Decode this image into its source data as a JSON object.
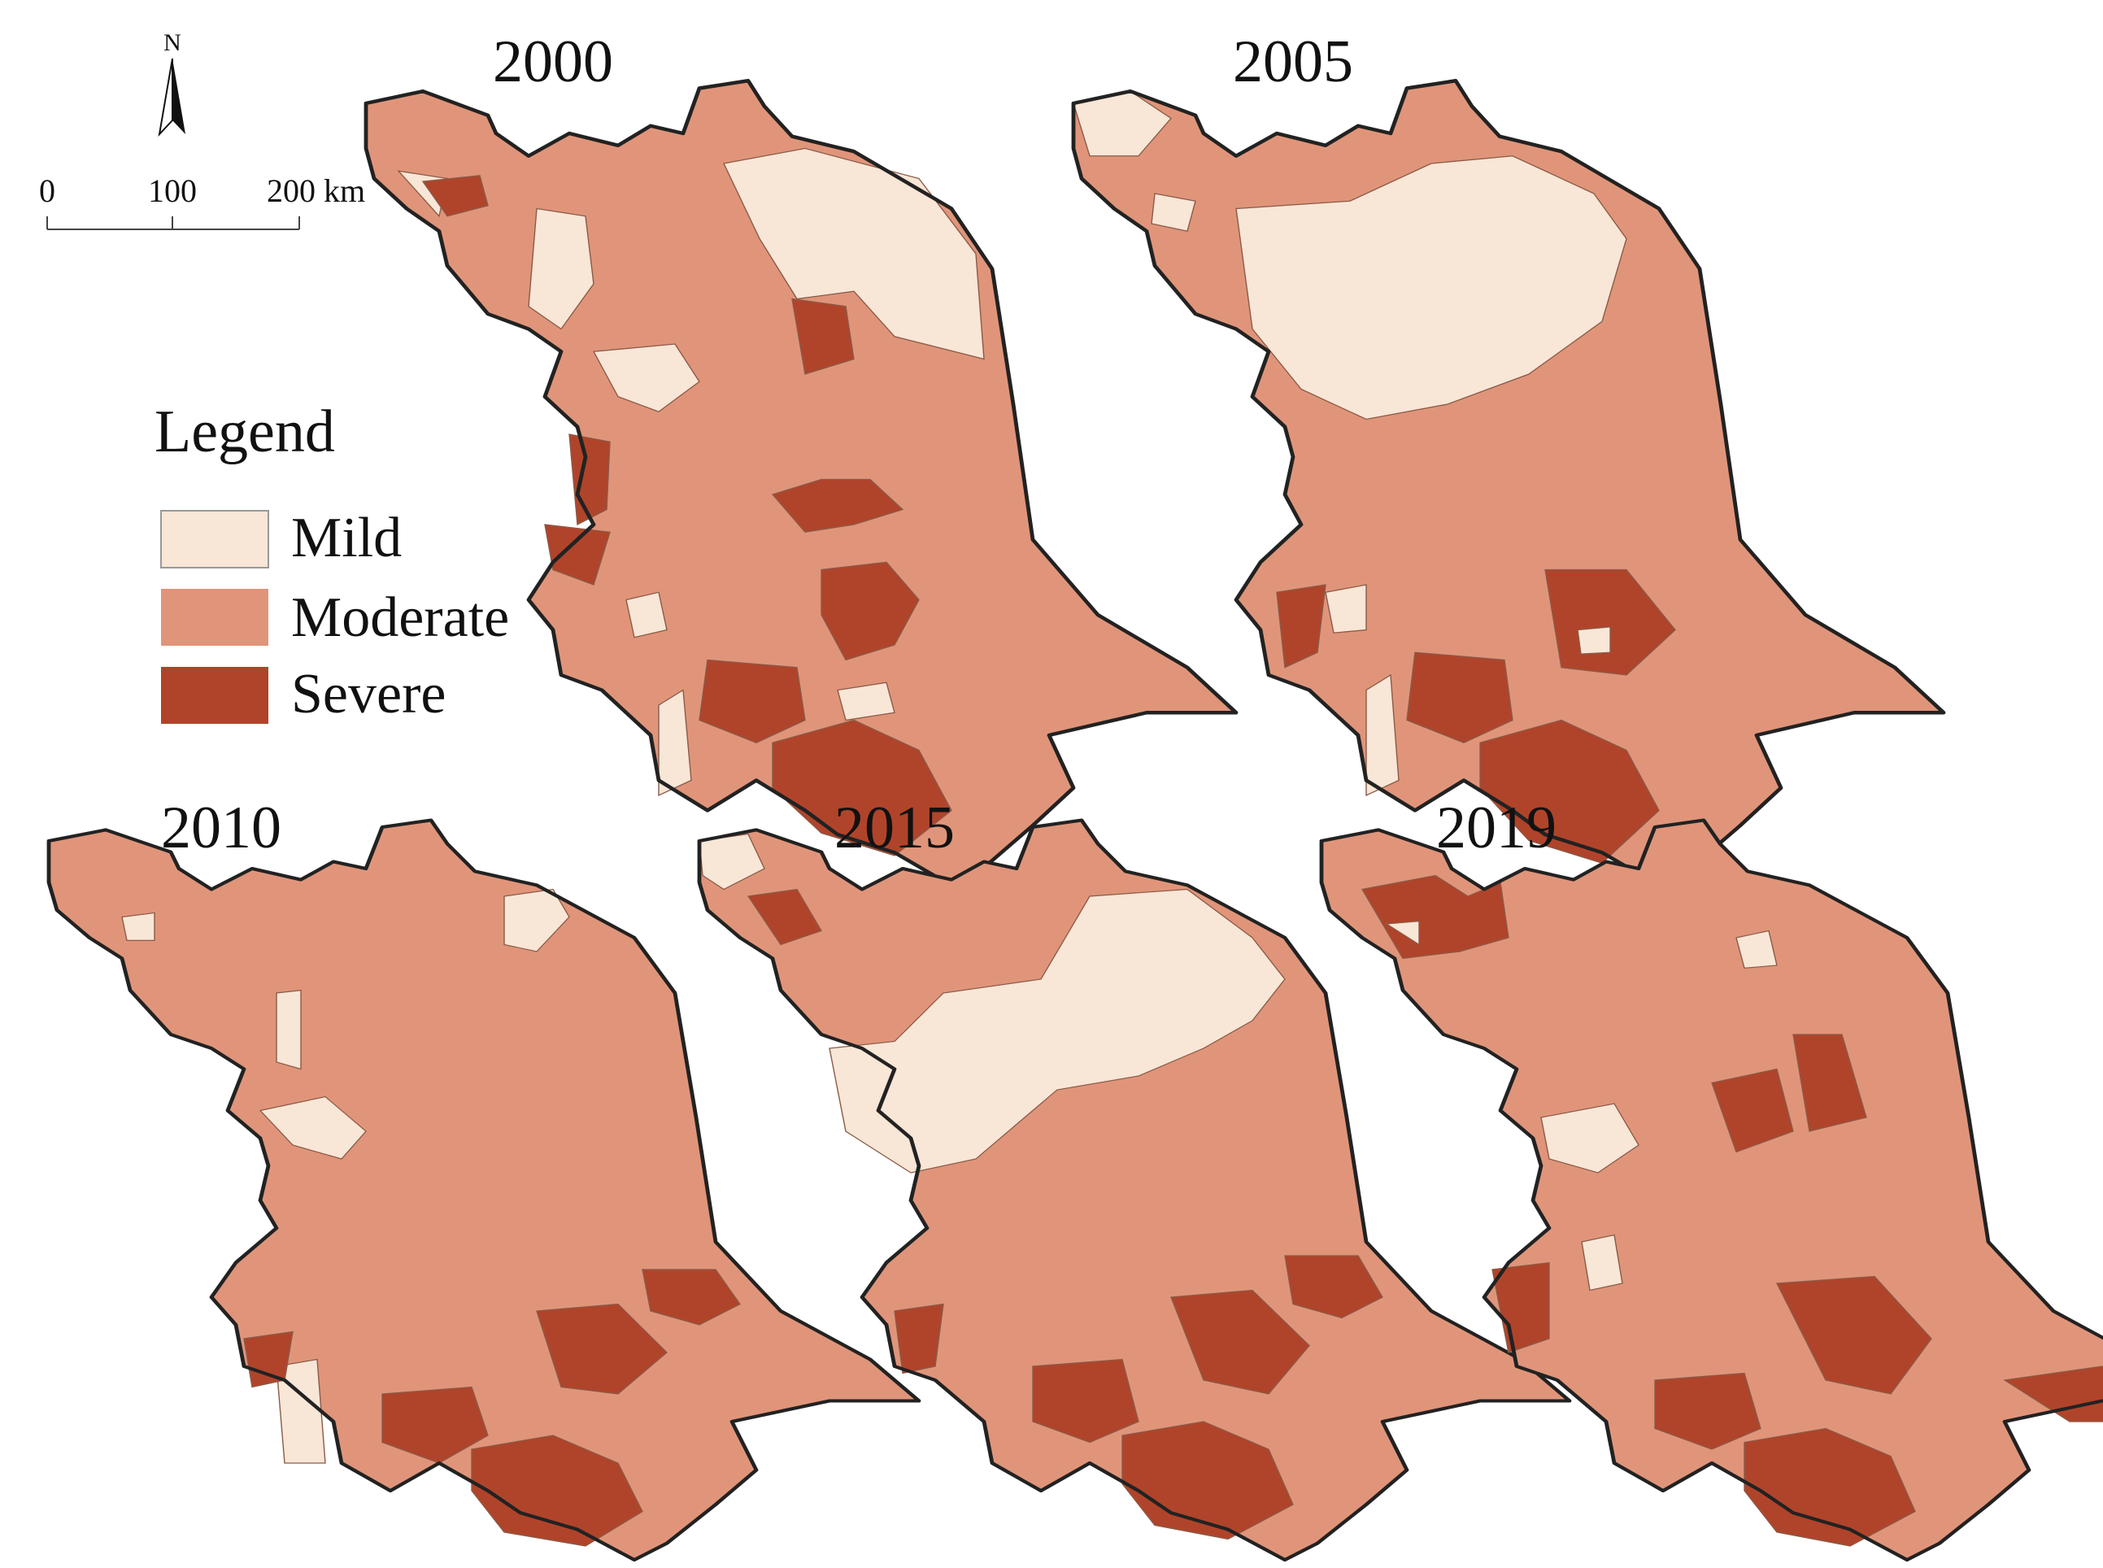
{
  "legend": {
    "title": "Legend",
    "items": [
      {
        "key": "mild",
        "label": "Mild",
        "color": "#f8e6d6"
      },
      {
        "key": "moderate",
        "label": "Moderate",
        "color": "#e0957a"
      },
      {
        "key": "severe",
        "label": "Severe",
        "color": "#b0442a"
      }
    ]
  },
  "north_arrow": {
    "label": "N"
  },
  "scale_bar": {
    "ticks": [
      "0",
      "100",
      "200 km"
    ]
  },
  "maps": [
    {
      "year": "2000"
    },
    {
      "year": "2005"
    },
    {
      "year": "2010"
    },
    {
      "year": "2015"
    },
    {
      "year": "2019"
    }
  ],
  "colors": {
    "mild": "#f8e6d6",
    "moderate": "#e0957a",
    "severe": "#b0442a",
    "outline": "#222222"
  }
}
